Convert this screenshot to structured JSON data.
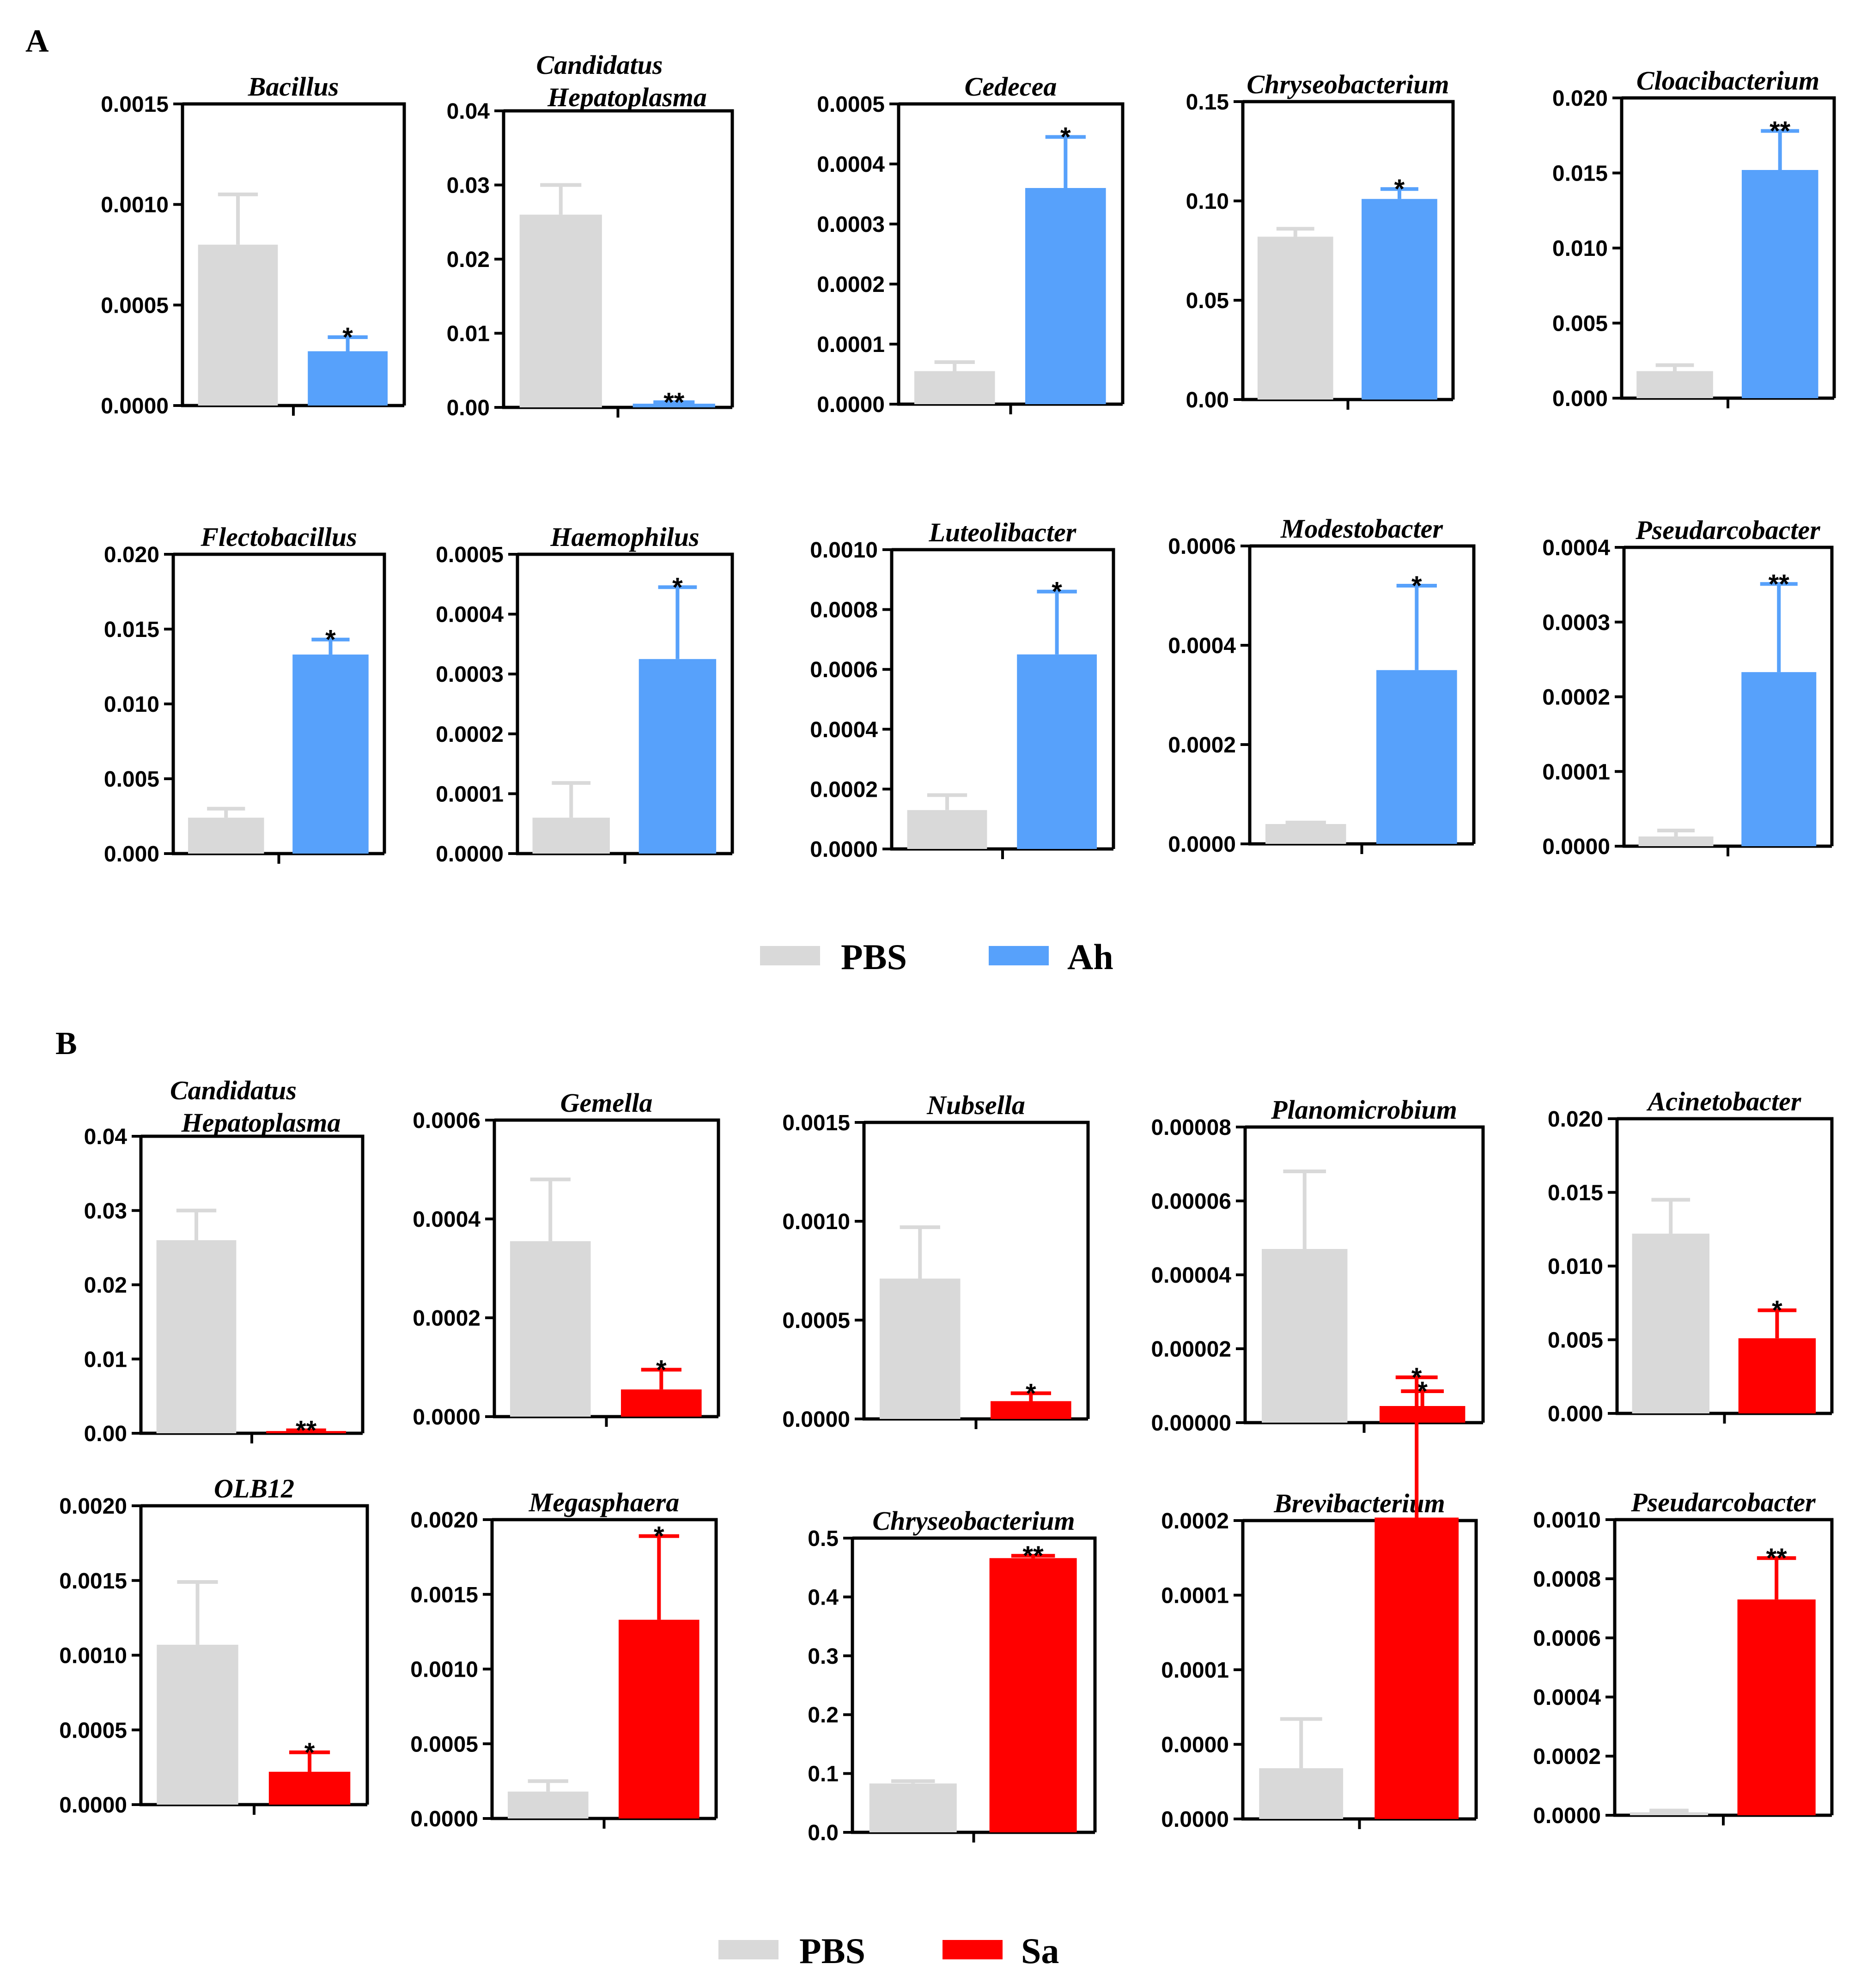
{
  "colors": {
    "pbs": "#d9d9d9",
    "ah": "#57a1fb",
    "sa": "#ff0000",
    "axis": "#000000"
  },
  "panels": [
    {
      "label": "A",
      "legend": [
        "PBS",
        "Ah"
      ]
    },
    {
      "label": "B",
      "legend": [
        "PBS",
        "Sa"
      ]
    }
  ],
  "chart_data": [
    {
      "panel": "A",
      "type": "bar",
      "title": "Bacillus",
      "ylim": [
        0,
        0.0015
      ],
      "ticks": [
        "0.0000",
        "0.0005",
        "0.0010",
        "0.0015"
      ],
      "categories": [
        "PBS",
        "Ah"
      ],
      "values": [
        0.0008,
        0.00027
      ],
      "errors": [
        0.00025,
        7e-05
      ],
      "sig": "*"
    },
    {
      "panel": "A",
      "type": "bar",
      "title": "Candidatus Hepatoplasma",
      "ylim": [
        0,
        0.04
      ],
      "ticks": [
        "0.00",
        "0.01",
        "0.02",
        "0.03",
        "0.04"
      ],
      "categories": [
        "PBS",
        "Ah"
      ],
      "values": [
        0.026,
        0.0005
      ],
      "errors": [
        0.004,
        0.0002
      ],
      "sig": "**"
    },
    {
      "panel": "A",
      "type": "bar",
      "title": "Cedecea",
      "ylim": [
        0,
        0.0005
      ],
      "ticks": [
        "0.0000",
        "0.0001",
        "0.0002",
        "0.0003",
        "0.0004",
        "0.0005"
      ],
      "categories": [
        "PBS",
        "Ah"
      ],
      "values": [
        5.5e-05,
        0.00036
      ],
      "errors": [
        1.5e-05,
        8.5e-05
      ],
      "sig": "*"
    },
    {
      "panel": "A",
      "type": "bar",
      "title": "Chryseobacterium",
      "ylim": [
        0,
        0.15
      ],
      "ticks": [
        "0.00",
        "0.05",
        "0.10",
        "0.15"
      ],
      "categories": [
        "PBS",
        "Ah"
      ],
      "values": [
        0.082,
        0.101
      ],
      "errors": [
        0.004,
        0.005
      ],
      "sig": "*"
    },
    {
      "panel": "A",
      "type": "bar",
      "title": "Cloacibacterium",
      "ylim": [
        0,
        0.02
      ],
      "ticks": [
        "0.000",
        "0.005",
        "0.010",
        "0.015",
        "0.020"
      ],
      "categories": [
        "PBS",
        "Ah"
      ],
      "values": [
        0.0018,
        0.0152
      ],
      "errors": [
        0.0004,
        0.0026
      ],
      "sig": "**"
    },
    {
      "panel": "A",
      "type": "bar",
      "title": "Flectobacillus",
      "ylim": [
        0,
        0.02
      ],
      "ticks": [
        "0.000",
        "0.005",
        "0.010",
        "0.015",
        "0.020"
      ],
      "categories": [
        "PBS",
        "Ah"
      ],
      "values": [
        0.0024,
        0.0133
      ],
      "errors": [
        0.0006,
        0.001
      ],
      "sig": "*"
    },
    {
      "panel": "A",
      "type": "bar",
      "title": "Haemophilus",
      "ylim": [
        0,
        0.0005
      ],
      "ticks": [
        "0.0000",
        "0.0001",
        "0.0002",
        "0.0003",
        "0.0004",
        "0.0005"
      ],
      "categories": [
        "PBS",
        "Ah"
      ],
      "values": [
        6e-05,
        0.000325
      ],
      "errors": [
        5.8e-05,
        0.00012
      ],
      "sig": "*"
    },
    {
      "panel": "A",
      "type": "bar",
      "title": "Luteolibacter",
      "ylim": [
        0,
        0.001
      ],
      "ticks": [
        "0.0000",
        "0.0002",
        "0.0004",
        "0.0006",
        "0.0008",
        "0.0010"
      ],
      "categories": [
        "PBS",
        "Ah"
      ],
      "values": [
        0.00013,
        0.00065
      ],
      "errors": [
        5e-05,
        0.00021
      ],
      "sig": "*"
    },
    {
      "panel": "A",
      "type": "bar",
      "title": "Modestobacter",
      "ylim": [
        0,
        0.0006
      ],
      "ticks": [
        "0.0000",
        "0.0002",
        "0.0004",
        "0.0006"
      ],
      "categories": [
        "PBS",
        "Ah"
      ],
      "values": [
        4e-05,
        0.00035
      ],
      "errors": [
        3e-06,
        0.00017
      ],
      "sig": "*"
    },
    {
      "panel": "A",
      "type": "bar",
      "title": "Pseudarcobacter",
      "ylim": [
        0,
        0.0004
      ],
      "ticks": [
        "0.0000",
        "0.0001",
        "0.0002",
        "0.0003",
        "0.0004"
      ],
      "categories": [
        "PBS",
        "Ah"
      ],
      "values": [
        1.3e-05,
        0.000233
      ],
      "errors": [
        8e-06,
        0.000118
      ],
      "sig": "**"
    },
    {
      "panel": "B",
      "type": "bar",
      "title": "Candidatus Hepatoplasma",
      "ylim": [
        0,
        0.04
      ],
      "ticks": [
        "0.00",
        "0.01",
        "0.02",
        "0.03",
        "0.04"
      ],
      "categories": [
        "PBS",
        "Sa"
      ],
      "values": [
        0.026,
        0.0003
      ],
      "errors": [
        0.004,
        0.0001
      ],
      "sig": "**"
    },
    {
      "panel": "B",
      "type": "bar",
      "title": "Gemella",
      "ylim": [
        0,
        0.0006
      ],
      "ticks": [
        "0.0000",
        "0.0002",
        "0.0004",
        "0.0006"
      ],
      "categories": [
        "PBS",
        "Sa"
      ],
      "values": [
        0.000355,
        5.5e-05
      ],
      "errors": [
        0.000125,
        4e-05
      ],
      "sig": "*"
    },
    {
      "panel": "B",
      "type": "bar",
      "title": "Nubsella",
      "ylim": [
        0,
        0.0015
      ],
      "ticks": [
        "0.0000",
        "0.0005",
        "0.0010",
        "0.0015"
      ],
      "categories": [
        "PBS",
        "Sa"
      ],
      "values": [
        0.00071,
        9e-05
      ],
      "errors": [
        0.00026,
        4e-05
      ],
      "sig": "*"
    },
    {
      "panel": "B",
      "type": "bar",
      "title": "Planomicrobium",
      "ylim": [
        0,
        8e-05
      ],
      "ticks": [
        "0.00000",
        "0.00002",
        "0.00004",
        "0.00006",
        "0.00008"
      ],
      "categories": [
        "PBS",
        "Sa"
      ],
      "values": [
        4.7e-05,
        4.5e-06
      ],
      "errors": [
        2.1e-05,
        4e-06
      ],
      "sig": "*"
    },
    {
      "panel": "B",
      "type": "bar",
      "title": "Acinetobacter",
      "ylim": [
        0,
        0.02
      ],
      "ticks": [
        "0.000",
        "0.005",
        "0.010",
        "0.015",
        "0.020"
      ],
      "categories": [
        "PBS",
        "Sa"
      ],
      "values": [
        0.0122,
        0.0051
      ],
      "errors": [
        0.0023,
        0.0019
      ],
      "sig": "*"
    },
    {
      "panel": "B",
      "type": "bar",
      "title": "OLB12",
      "ylim": [
        0,
        0.002
      ],
      "ticks": [
        "0.0000",
        "0.0005",
        "0.0010",
        "0.0015",
        "0.0020"
      ],
      "categories": [
        "PBS",
        "Sa"
      ],
      "values": [
        0.00107,
        0.00022
      ],
      "errors": [
        0.00042,
        0.00013
      ],
      "sig": "*"
    },
    {
      "panel": "B",
      "type": "bar",
      "title": "Megasphaera",
      "ylim": [
        0,
        0.002
      ],
      "ticks": [
        "0.0000",
        "0.0005",
        "0.0010",
        "0.0015",
        "0.0020"
      ],
      "categories": [
        "PBS",
        "Sa"
      ],
      "values": [
        0.00018,
        0.00133
      ],
      "errors": [
        7e-05,
        0.00056
      ],
      "sig": "*"
    },
    {
      "panel": "B",
      "type": "bar",
      "title": "Chryseobacterium",
      "ylim": [
        0,
        0.5
      ],
      "ticks": [
        "0.0",
        "0.1",
        "0.2",
        "0.3",
        "0.4",
        "0.5"
      ],
      "categories": [
        "PBS",
        "Sa"
      ],
      "values": [
        0.083,
        0.466
      ],
      "errors": [
        0.004,
        0.004
      ],
      "sig": "**"
    },
    {
      "panel": "B",
      "type": "bar",
      "title": "Brevibacterium",
      "ylim": [
        0,
        0.0002
      ],
      "ticks": [
        "0.0000",
        "0.0000",
        "0.0001",
        "0.0001",
        "0.0002"
      ],
      "categories": [
        "PBS",
        "Sa"
      ],
      "values": [
        3.4e-05,
        0.000202
      ],
      "errors": [
        3.3e-05,
        9.4e-05
      ],
      "sig": "*"
    },
    {
      "panel": "B",
      "type": "bar",
      "title": "Pseudarcobacter",
      "ylim": [
        0,
        0.001
      ],
      "ticks": [
        "0.0000",
        "0.0002",
        "0.0004",
        "0.0006",
        "0.0008",
        "0.0010"
      ],
      "categories": [
        "PBS",
        "Sa"
      ],
      "values": [
        1e-05,
        0.00073
      ],
      "errors": [
        6e-06,
        0.00014
      ],
      "sig": "**"
    }
  ]
}
